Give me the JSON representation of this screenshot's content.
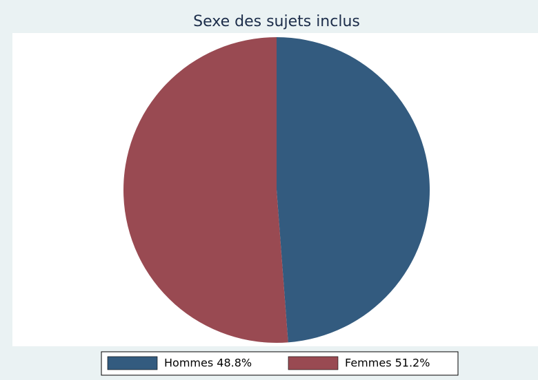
{
  "chart_data": {
    "type": "pie",
    "title": "Sexe des sujets inclus",
    "labels": [
      "Hommes 48.8%",
      "Femmes 51.2%"
    ],
    "values": [
      48.8,
      51.2
    ],
    "colors": [
      "#335b7f",
      "#994a52"
    ],
    "legend": "bottom"
  }
}
